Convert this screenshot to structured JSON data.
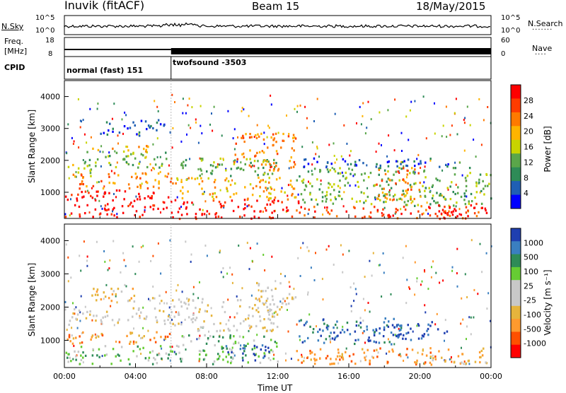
{
  "header": {
    "site": "Inuvik (fitACF)",
    "beam": "Beam 15",
    "date": "18/May/2015"
  },
  "panels": {
    "nsky": {
      "label": "N.Sky",
      "ticks": [
        "10^5",
        "10^0"
      ]
    },
    "nsearch": {
      "label": "N.Search",
      "ticks": [
        "10^5",
        "10^0"
      ]
    },
    "freq": {
      "label_line1": "Freq.",
      "label_line2": "[MHz]",
      "ticks": [
        "18",
        "8"
      ]
    },
    "nave": {
      "label": "Nave",
      "ticks": [
        "60",
        "0"
      ]
    },
    "cpid": {
      "label": "CPID",
      "modes": [
        "normal (fast) 151",
        "twofsound -3503"
      ]
    }
  },
  "colors": {
    "power": [
      "#0000ff",
      "#1f5fb4",
      "#2e8b57",
      "#5aa64a",
      "#c8d400",
      "#ffb400",
      "#ff7a00",
      "#ff3c00",
      "#ff0000"
    ],
    "velocity": [
      "#ff0000",
      "#ff5000",
      "#ff9a2e",
      "#e6b43c",
      "#c8c8c8",
      "#c8c8c8",
      "#66cc33",
      "#2e8b57",
      "#3a7fc0",
      "#1f3fb0"
    ]
  },
  "chart_data": [
    {
      "type": "heatmap",
      "name": "power",
      "ylabel": "Slant Range [km]",
      "ylim": [
        180,
        4500
      ],
      "yticks": [
        "1000",
        "2000",
        "3000",
        "4000"
      ],
      "colorbar_label": "Power [dB]",
      "colorbar_ticks": [
        "28",
        "24",
        "20",
        "16",
        "12",
        "8",
        "4"
      ],
      "bands": [
        {
          "t0": 0.0,
          "t1": 6.0,
          "r0": 250,
          "r1": 1100,
          "level": 8
        },
        {
          "t0": 0.2,
          "t1": 6.0,
          "r0": 1150,
          "r1": 1650,
          "level": 6
        },
        {
          "t0": 0.0,
          "t1": 1.5,
          "r0": 1500,
          "r1": 1900,
          "level": 4
        },
        {
          "t0": 1.0,
          "t1": 6.0,
          "r0": 1800,
          "r1": 2300,
          "level": 3
        },
        {
          "t0": 1.5,
          "t1": 5.0,
          "r0": 2300,
          "r1": 2500,
          "level": 5
        },
        {
          "t0": 2.0,
          "t1": 6.0,
          "r0": 2800,
          "r1": 3300,
          "level": 1
        },
        {
          "t0": 6.0,
          "t1": 13.5,
          "r0": 200,
          "r1": 800,
          "level": 8
        },
        {
          "t0": 6.0,
          "t1": 13.0,
          "r0": 800,
          "r1": 1500,
          "level": 5
        },
        {
          "t0": 6.0,
          "t1": 12.0,
          "r0": 1500,
          "r1": 2100,
          "level": 3
        },
        {
          "t0": 9.5,
          "t1": 13.0,
          "r0": 1700,
          "r1": 2900,
          "level": 6
        },
        {
          "t0": 13.0,
          "t1": 24.0,
          "r0": 200,
          "r1": 600,
          "level": 7
        },
        {
          "t0": 13.0,
          "t1": 24.0,
          "r0": 600,
          "r1": 1800,
          "level": 3
        },
        {
          "t0": 13.0,
          "t1": 22.0,
          "r0": 1800,
          "r1": 2100,
          "level": 1
        },
        {
          "t0": 17.5,
          "t1": 20.0,
          "r0": 800,
          "r1": 1800,
          "level": 6
        },
        {
          "t0": 20.5,
          "t1": 23.8,
          "r0": 250,
          "r1": 700,
          "level": 8
        }
      ]
    },
    {
      "type": "heatmap",
      "name": "velocity",
      "ylabel": "Slant Range [km]",
      "ylim": [
        180,
        4500
      ],
      "yticks": [
        "1000",
        "2000",
        "3000",
        "4000"
      ],
      "colorbar_label": "Velocity [m s⁻¹]",
      "colorbar_ticks": [
        "1000",
        "500",
        "100",
        "25",
        "-25",
        "-100",
        "-500",
        "-1000"
      ],
      "xlabel": "Time UT",
      "xticks": [
        "00:00",
        "04:00",
        "08:00",
        "12:00",
        "16:00",
        "20:00",
        "00:00"
      ],
      "xlim": [
        0,
        24
      ],
      "bands": [
        {
          "t0": 0.0,
          "t1": 6.0,
          "r0": 300,
          "r1": 900,
          "level": 6
        },
        {
          "t0": 0.0,
          "t1": 6.0,
          "r0": 900,
          "r1": 1300,
          "level": 2
        },
        {
          "t0": 0.0,
          "t1": 6.0,
          "r0": 1500,
          "r1": 2000,
          "level": 4
        },
        {
          "t0": 1.5,
          "t1": 5.5,
          "r0": 2200,
          "r1": 2600,
          "level": 3
        },
        {
          "t0": 6.0,
          "t1": 12.0,
          "r0": 300,
          "r1": 1200,
          "level": 6
        },
        {
          "t0": 6.0,
          "t1": 12.0,
          "r0": 1300,
          "r1": 2300,
          "level": 4
        },
        {
          "t0": 9.0,
          "t1": 11.5,
          "r0": 400,
          "r1": 900,
          "level": 9
        },
        {
          "t0": 10.5,
          "t1": 13.0,
          "r0": 1800,
          "r1": 2800,
          "level": 4
        },
        {
          "t0": 13.0,
          "t1": 19.0,
          "r0": 900,
          "r1": 1700,
          "level": 8
        },
        {
          "t0": 13.0,
          "t1": 24.0,
          "r0": 300,
          "r1": 800,
          "level": 2
        },
        {
          "t0": 17.0,
          "t1": 21.5,
          "r0": 1000,
          "r1": 1600,
          "level": 9
        },
        {
          "t0": 20.5,
          "t1": 23.8,
          "r0": 300,
          "r1": 600,
          "level": 3
        }
      ]
    }
  ]
}
